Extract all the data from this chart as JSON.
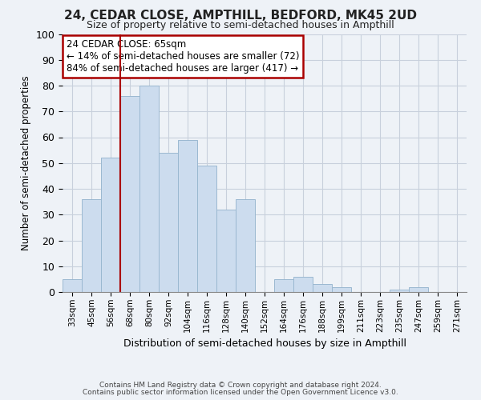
{
  "title": "24, CEDAR CLOSE, AMPTHILL, BEDFORD, MK45 2UD",
  "subtitle": "Size of property relative to semi-detached houses in Ampthill",
  "xlabel": "Distribution of semi-detached houses by size in Ampthill",
  "ylabel": "Number of semi-detached properties",
  "footnote1": "Contains HM Land Registry data © Crown copyright and database right 2024.",
  "footnote2": "Contains public sector information licensed under the Open Government Licence v3.0.",
  "bar_labels": [
    "33sqm",
    "45sqm",
    "56sqm",
    "68sqm",
    "80sqm",
    "92sqm",
    "104sqm",
    "116sqm",
    "128sqm",
    "140sqm",
    "152sqm",
    "164sqm",
    "176sqm",
    "188sqm",
    "199sqm",
    "211sqm",
    "223sqm",
    "235sqm",
    "247sqm",
    "259sqm",
    "271sqm"
  ],
  "bar_values": [
    5,
    36,
    52,
    76,
    80,
    54,
    59,
    49,
    32,
    36,
    0,
    5,
    6,
    3,
    2,
    0,
    0,
    1,
    2,
    0,
    0
  ],
  "bar_color": "#ccdcee",
  "bar_edge_color": "#9ab8d0",
  "annotation_title": "24 CEDAR CLOSE: 65sqm",
  "annotation_line1": "← 14% of semi-detached houses are smaller (72)",
  "annotation_line2": "84% of semi-detached houses are larger (417) →",
  "annotation_box_color": "#ffffff",
  "annotation_box_edge": "#aa0000",
  "vline_color": "#aa0000",
  "ylim": [
    0,
    100
  ],
  "background_color": "#eef2f7",
  "plot_bg_color": "#eef2f7",
  "grid_color": "#c8d0dc",
  "title_fontsize": 11,
  "subtitle_fontsize": 9
}
